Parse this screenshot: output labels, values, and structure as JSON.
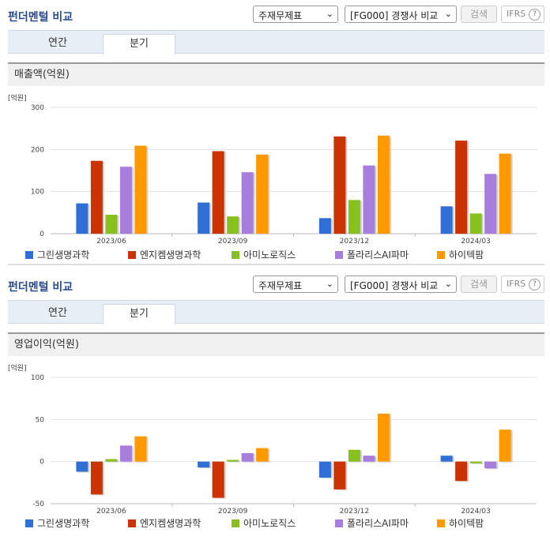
{
  "colors": {
    "green_cross": "#2f6fd6",
    "gc_cell": "#cc3300",
    "aminologics": "#88c020",
    "polaris": "#a77dde",
    "hitechpharm": "#ff9900"
  },
  "panels": [
    {
      "header_title": "펀더멘털 비교",
      "select1": "주재무제표",
      "select2": "[FG000] 경쟁사 비교",
      "search_label": "검색",
      "ifrs_label": "IFRS",
      "ifrs_help": "?",
      "tab_annual": "연간",
      "tab_quarter": "분기",
      "metric_label": "매출액(억원)",
      "unit_label": "[억원]"
    },
    {
      "header_title": "펀더멘털 비교",
      "select1": "주재무제표",
      "select2": "[FG000] 경쟁사 비교",
      "search_label": "검색",
      "ifrs_label": "IFRS",
      "ifrs_help": "?",
      "tab_annual": "연간",
      "tab_quarter": "분기",
      "metric_label": "영업이익(억원)",
      "unit_label": "[억원]"
    }
  ],
  "chart_data": [
    {
      "type": "bar",
      "categories": [
        "2023/06",
        "2023/09",
        "2023/12",
        "2024/03"
      ],
      "ylabel": "[억원]",
      "ylim": [
        0,
        300
      ],
      "yticks": [
        0,
        100,
        200,
        300
      ],
      "grid": true,
      "legend": "bottom",
      "series": [
        {
          "name": "그린생명과학",
          "values": [
            72,
            74,
            37,
            65
          ]
        },
        {
          "name": "엔지켐생명과학",
          "values": [
            173,
            196,
            231,
            221
          ]
        },
        {
          "name": "아미노로직스",
          "values": [
            45,
            41,
            80,
            48
          ]
        },
        {
          "name": "폴라리스AI파마",
          "values": [
            159,
            146,
            162,
            142
          ]
        },
        {
          "name": "하이텍팜",
          "values": [
            209,
            188,
            233,
            190
          ]
        }
      ]
    },
    {
      "type": "bar",
      "categories": [
        "2023/06",
        "2023/09",
        "2023/12",
        "2024/03"
      ],
      "ylabel": "[억원]",
      "ylim": [
        -50,
        100
      ],
      "yticks": [
        -50,
        0,
        50,
        100
      ],
      "grid": true,
      "legend": "bottom",
      "series": [
        {
          "name": "그린생명과학",
          "values": [
            -12,
            -7,
            -19,
            7
          ]
        },
        {
          "name": "엔지켐생명과학",
          "values": [
            -39,
            -43,
            -33,
            -23
          ]
        },
        {
          "name": "아미노로직스",
          "values": [
            3,
            2,
            14,
            -2
          ]
        },
        {
          "name": "폴라리스AI파마",
          "values": [
            19,
            10,
            7,
            -8
          ]
        },
        {
          "name": "하이텍팜",
          "values": [
            30,
            16,
            57,
            38
          ]
        }
      ]
    }
  ]
}
